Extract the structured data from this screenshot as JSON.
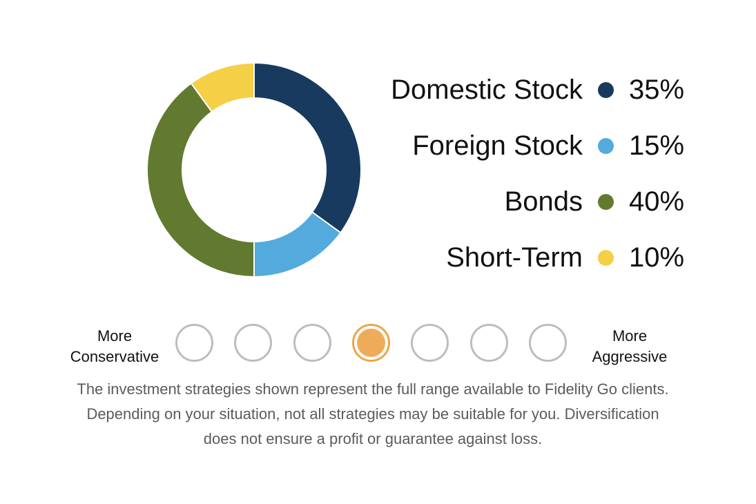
{
  "chart_data": {
    "type": "pie",
    "categories": [
      "Domestic Stock",
      "Foreign Stock",
      "Bonds",
      "Short-Term"
    ],
    "values": [
      35,
      15,
      40,
      10
    ],
    "value_labels": [
      "35%",
      "15%",
      "40%",
      "10%"
    ],
    "colors": [
      "#183a5e",
      "#52aadd",
      "#617a30",
      "#f5cf46"
    ],
    "donut": true,
    "legend_position": "right"
  },
  "legend": [
    {
      "label": "Domestic Stock",
      "value": "35%",
      "color": "#183a5e"
    },
    {
      "label": "Foreign Stock",
      "value": "15%",
      "color": "#52aadd"
    },
    {
      "label": "Bonds",
      "value": "40%",
      "color": "#617a30"
    },
    {
      "label": "Short-Term",
      "value": "10%",
      "color": "#f5cf46"
    }
  ],
  "selector": {
    "left_label_line1": "More",
    "left_label_line2": "Conservative",
    "right_label_line1": "More",
    "right_label_line2": "Aggressive",
    "level_count": 7,
    "selected_level": 4,
    "selected_color": "#efac58"
  },
  "disclaimer": {
    "line1": "The investment strategies shown represent the full range available to Fidelity Go clients.",
    "line2": "Depending on your situation, not all strategies may be suitable for you. Diversification",
    "line3": "does not ensure a profit or guarantee against loss."
  }
}
